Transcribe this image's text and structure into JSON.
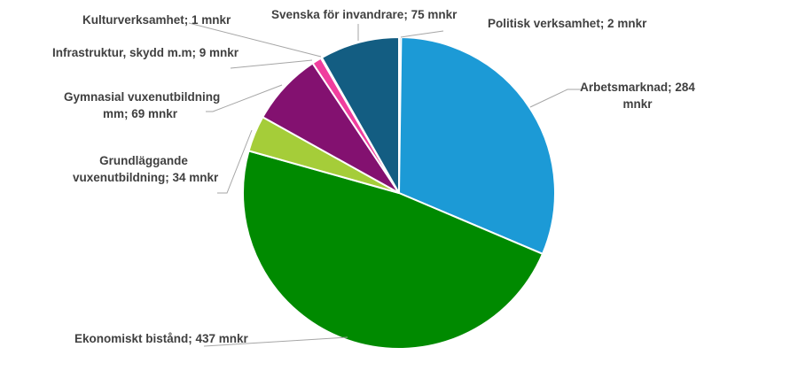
{
  "chart_data": {
    "type": "pie",
    "title": "",
    "unit": "mnkr",
    "start_angle_deg": 0,
    "direction": "clockwise",
    "legend": "none (data labels with leader lines)",
    "slices": [
      {
        "label": "Politisk verksamhet",
        "value": 2,
        "color": "#9dc3e6",
        "display": "Politisk verksamhet; 2 mnkr"
      },
      {
        "label": "Arbetsmarknad",
        "value": 284,
        "color": "#1c9ad6",
        "display": "Arbetsmarknad; 284 mnkr"
      },
      {
        "label": "Ekonomiskt bistånd",
        "value": 437,
        "color": "#008a00",
        "display": "Ekonomiskt bistånd; 437 mnkr"
      },
      {
        "label": "Grundläggande vuxenutbildning",
        "value": 34,
        "color": "#a5cd39",
        "display": "Grundläggande vuxenutbildning; 34 mnkr"
      },
      {
        "label": "Gymnasial vuxenutbildning mm",
        "value": 69,
        "color": "#831170",
        "display": "Gymnasial vuxenutbildning mm; 69 mnkr"
      },
      {
        "label": "Infrastruktur, skydd m.m",
        "value": 9,
        "color": "#f03e9e",
        "display": "Infrastruktur, skydd m.m; 9 mnkr"
      },
      {
        "label": "Kulturverksamhet",
        "value": 1,
        "color": "#c5e0f0",
        "display": "Kulturverksamhet; 1 mnkr"
      },
      {
        "label": "Svenska för invandrare",
        "value": 75,
        "color": "#135d82",
        "display": "Svenska för invandrare; 75 mnkr"
      }
    ]
  },
  "labels": {
    "politisk": "Politisk verksamhet; 2 mnkr",
    "arbetsmarknad_l1": "Arbetsmarknad; 284",
    "arbetsmarknad_l2": "mnkr",
    "ekonomiskt": "Ekonomiskt bistånd; 437 mnkr",
    "grund_l1": "Grundläggande",
    "grund_l2": "vuxenutbildning; 34 mnkr",
    "gymn_l1": "Gymnasial vuxenutbildning",
    "gymn_l2": "mm; 69 mnkr",
    "infra": "Infrastruktur,  skydd m.m; 9 mnkr",
    "kultur": "Kulturverksamhet; 1 mnkr",
    "svenska": "Svenska för invandrare; 75 mnkr"
  },
  "colors": {
    "leader_line": "#a6a6a6",
    "label_text": "#404040",
    "slice_border": "#ffffff"
  }
}
